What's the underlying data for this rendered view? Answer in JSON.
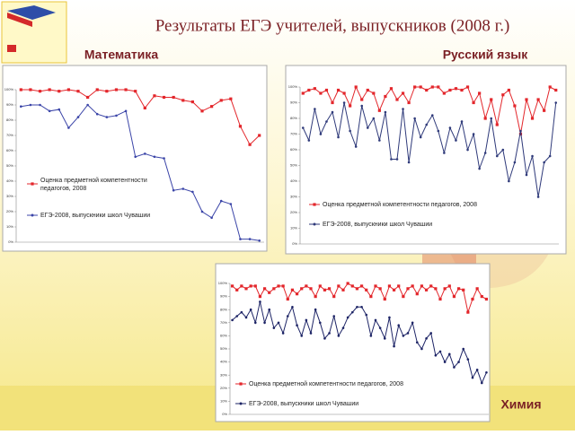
{
  "title": "Результаты ЕГЭ учителей, выпускников (2008 г.)",
  "chart_data": [
    {
      "type": "line",
      "title": "Математика",
      "categories": [
        null,
        null,
        null,
        null,
        null,
        null,
        null,
        null,
        null,
        null,
        null,
        null,
        null,
        null,
        null,
        null,
        null,
        null,
        null,
        null,
        null,
        null,
        null,
        null,
        null,
        null
      ],
      "series": [
        {
          "name": "Оценка предметной компетентности педагогов, 2008",
          "color": "#e3262b",
          "values": [
            100,
            100,
            99,
            100,
            99,
            100,
            99,
            95,
            100,
            99,
            100,
            100,
            99,
            88,
            96,
            95,
            95,
            93,
            92,
            86,
            89,
            93,
            94,
            76,
            64,
            70
          ]
        },
        {
          "name": "ЕГЭ-2008, выпускники школ Чувашии",
          "color": "#3b45a8",
          "values": [
            89,
            90,
            90,
            86,
            87,
            75,
            82,
            90,
            84,
            82,
            83,
            86,
            56,
            58,
            56,
            55,
            34,
            35,
            33,
            20,
            16,
            27,
            25,
            2,
            2,
            1
          ]
        }
      ],
      "ylim": [
        0,
        100
      ],
      "yticks": [
        {
          "value": 0,
          "label": "0%"
        },
        {
          "value": 10,
          "label": "10%"
        },
        {
          "value": 20,
          "label": "20%"
        },
        {
          "value": 30,
          "label": "30%"
        },
        {
          "value": 40,
          "label": "40%"
        },
        {
          "value": 50,
          "label": "50%"
        },
        {
          "value": 60,
          "label": "60%"
        },
        {
          "value": 70,
          "label": "70%"
        },
        {
          "value": 80,
          "label": "80%"
        },
        {
          "value": 90,
          "label": "90%"
        },
        {
          "value": 100,
          "label": "100%"
        }
      ],
      "grid": false
    },
    {
      "type": "line",
      "title": "Русский язык",
      "categories": [
        null,
        null,
        null,
        null,
        null,
        null,
        null,
        null,
        null,
        null,
        null,
        null,
        null,
        null,
        null,
        null,
        null,
        null,
        null,
        null,
        null,
        null,
        null,
        null,
        null,
        null,
        null,
        null,
        null,
        null,
        null,
        null,
        null,
        null,
        null,
        null,
        null,
        null,
        null,
        null,
        null,
        null,
        null,
        null
      ],
      "series": [
        {
          "name": "Оценка предметной компетентности педагогов, 2008",
          "color": "#e3262b",
          "values": [
            96,
            98,
            99,
            96,
            98,
            90,
            98,
            96,
            88,
            100,
            92,
            98,
            96,
            85,
            94,
            99,
            92,
            96,
            90,
            100,
            100,
            98,
            100,
            100,
            96,
            98,
            99,
            98,
            100,
            90,
            96,
            80,
            92,
            76,
            95,
            98,
            88,
            70,
            92,
            80,
            92,
            85,
            100,
            98
          ]
        },
        {
          "name": "ЕГЭ-2008, выпускники школ Чувашии",
          "color": "#2f3a7a",
          "values": [
            74,
            66,
            86,
            70,
            78,
            84,
            68,
            90,
            72,
            62,
            88,
            74,
            80,
            66,
            84,
            54,
            54,
            86,
            52,
            80,
            68,
            76,
            82,
            72,
            58,
            74,
            66,
            78,
            60,
            70,
            48,
            58,
            80,
            56,
            60,
            40,
            52,
            72,
            44,
            56,
            30,
            52,
            56,
            90
          ]
        }
      ],
      "ylim": [
        0,
        100
      ],
      "yticks": [
        {
          "value": 0,
          "label": "0%"
        },
        {
          "value": 10,
          "label": "10%"
        },
        {
          "value": 20,
          "label": "20%"
        },
        {
          "value": 30,
          "label": "30%"
        },
        {
          "value": 40,
          "label": "40%"
        },
        {
          "value": 50,
          "label": "50%"
        },
        {
          "value": 60,
          "label": "60%"
        },
        {
          "value": 70,
          "label": "70%"
        },
        {
          "value": 80,
          "label": "80%"
        },
        {
          "value": 90,
          "label": "90%"
        },
        {
          "value": 100,
          "label": "100%"
        }
      ],
      "grid": false
    },
    {
      "type": "line",
      "title": "Химия",
      "categories": [
        null,
        null,
        null,
        null,
        null,
        null,
        null,
        null,
        null,
        null,
        null,
        null,
        null,
        null,
        null,
        null,
        null,
        null,
        null,
        null,
        null,
        null,
        null,
        null,
        null,
        null,
        null,
        null,
        null,
        null,
        null,
        null,
        null,
        null,
        null,
        null,
        null,
        null,
        null,
        null,
        null,
        null,
        null,
        null,
        null,
        null,
        null,
        null,
        null,
        null,
        null,
        null,
        null,
        null,
        null,
        null
      ],
      "series": [
        {
          "name": "Оценка предметной компетентности педагогов, 2008",
          "color": "#e3262b",
          "values": [
            98,
            95,
            98,
            96,
            98,
            98,
            90,
            96,
            93,
            96,
            98,
            98,
            88,
            95,
            92,
            96,
            98,
            96,
            90,
            98,
            95,
            96,
            90,
            98,
            95,
            100,
            98,
            96,
            98,
            95,
            90,
            98,
            96,
            88,
            98,
            95,
            98,
            90,
            96,
            98,
            92,
            98,
            95,
            98,
            96,
            88,
            96,
            98,
            90,
            96,
            95,
            78,
            88,
            96,
            90,
            88
          ]
        },
        {
          "name": "ЕГЭ-2008, выпускники школ Чувашии",
          "color": "#1d2466",
          "values": [
            72,
            75,
            78,
            74,
            80,
            70,
            86,
            70,
            80,
            66,
            70,
            62,
            75,
            82,
            68,
            60,
            72,
            62,
            80,
            70,
            58,
            62,
            75,
            60,
            66,
            74,
            78,
            82,
            82,
            76,
            60,
            72,
            66,
            58,
            74,
            52,
            68,
            60,
            62,
            70,
            55,
            50,
            58,
            62,
            45,
            48,
            40,
            46,
            36,
            40,
            50,
            42,
            28,
            34,
            24,
            32
          ]
        }
      ],
      "ylim": [
        0,
        100
      ],
      "yticks": [
        {
          "value": 0,
          "label": "0%"
        },
        {
          "value": 10,
          "label": "10%"
        },
        {
          "value": 20,
          "label": "20%"
        },
        {
          "value": 30,
          "label": "30%"
        },
        {
          "value": 40,
          "label": "40%"
        },
        {
          "value": 50,
          "label": "50%"
        },
        {
          "value": 60,
          "label": "60%"
        },
        {
          "value": 70,
          "label": "70%"
        },
        {
          "value": 80,
          "label": "80%"
        },
        {
          "value": 90,
          "label": "90%"
        },
        {
          "value": 100,
          "label": "100%"
        }
      ],
      "grid": false
    }
  ]
}
